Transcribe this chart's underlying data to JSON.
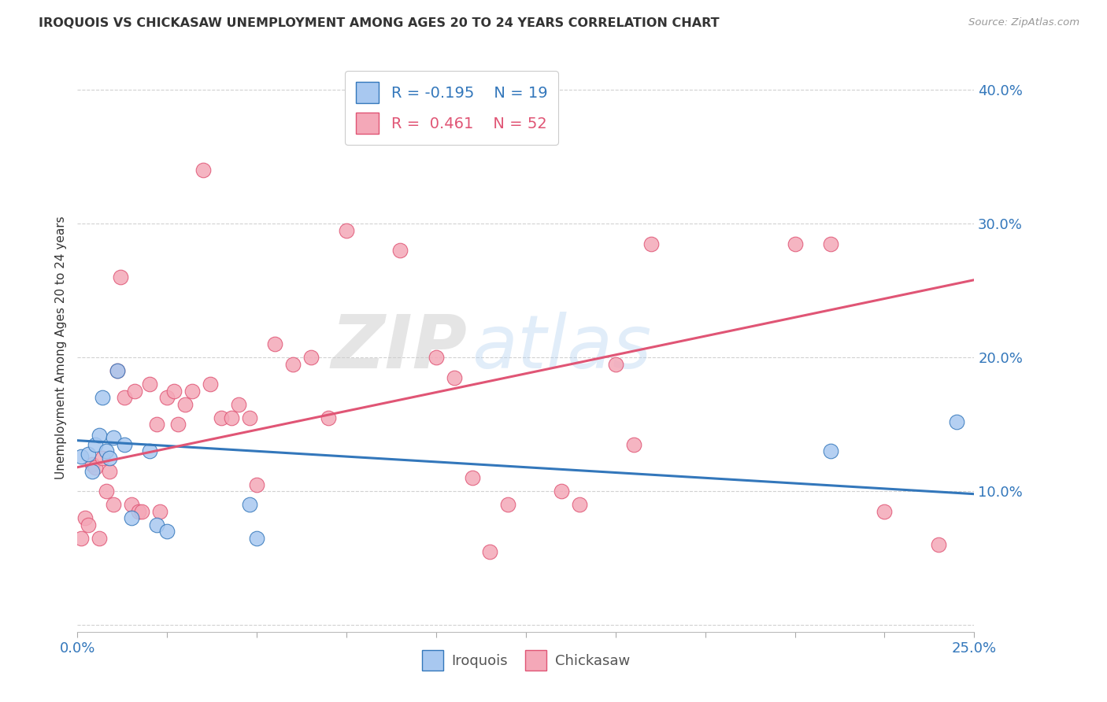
{
  "title": "IROQUOIS VS CHICKASAW UNEMPLOYMENT AMONG AGES 20 TO 24 YEARS CORRELATION CHART",
  "source": "Source: ZipAtlas.com",
  "ylabel": "Unemployment Among Ages 20 to 24 years",
  "xlim": [
    0.0,
    0.25
  ],
  "ylim": [
    -0.005,
    0.42
  ],
  "yticks": [
    0.0,
    0.1,
    0.2,
    0.3,
    0.4
  ],
  "legend_iroquois_R": "-0.195",
  "legend_iroquois_N": "19",
  "legend_chickasaw_R": "0.461",
  "legend_chickasaw_N": "52",
  "iroquois_color": "#a8c8f0",
  "chickasaw_color": "#f4a8b8",
  "iroquois_line_color": "#3377bb",
  "chickasaw_line_color": "#e05575",
  "watermark_zip": "ZIP",
  "watermark_atlas": "atlas",
  "iroquois_x": [
    0.001,
    0.003,
    0.004,
    0.005,
    0.006,
    0.007,
    0.008,
    0.009,
    0.01,
    0.011,
    0.013,
    0.015,
    0.02,
    0.022,
    0.025,
    0.048,
    0.05,
    0.21,
    0.245
  ],
  "iroquois_y": [
    0.126,
    0.128,
    0.115,
    0.135,
    0.142,
    0.17,
    0.13,
    0.125,
    0.14,
    0.19,
    0.135,
    0.08,
    0.13,
    0.075,
    0.07,
    0.09,
    0.065,
    0.13,
    0.152
  ],
  "chickasaw_x": [
    0.001,
    0.002,
    0.003,
    0.004,
    0.005,
    0.006,
    0.007,
    0.008,
    0.009,
    0.01,
    0.011,
    0.012,
    0.013,
    0.015,
    0.016,
    0.017,
    0.018,
    0.02,
    0.022,
    0.023,
    0.025,
    0.027,
    0.028,
    0.03,
    0.032,
    0.035,
    0.037,
    0.04,
    0.043,
    0.045,
    0.048,
    0.05,
    0.055,
    0.06,
    0.065,
    0.07,
    0.075,
    0.09,
    0.1,
    0.105,
    0.11,
    0.115,
    0.12,
    0.135,
    0.14,
    0.15,
    0.155,
    0.16,
    0.2,
    0.21,
    0.225,
    0.24
  ],
  "chickasaw_y": [
    0.065,
    0.08,
    0.075,
    0.12,
    0.118,
    0.065,
    0.125,
    0.1,
    0.115,
    0.09,
    0.19,
    0.26,
    0.17,
    0.09,
    0.175,
    0.085,
    0.085,
    0.18,
    0.15,
    0.085,
    0.17,
    0.175,
    0.15,
    0.165,
    0.175,
    0.34,
    0.18,
    0.155,
    0.155,
    0.165,
    0.155,
    0.105,
    0.21,
    0.195,
    0.2,
    0.155,
    0.295,
    0.28,
    0.2,
    0.185,
    0.11,
    0.055,
    0.09,
    0.1,
    0.09,
    0.195,
    0.135,
    0.285,
    0.285,
    0.285,
    0.085,
    0.06
  ],
  "iroquois_line_x": [
    0.0,
    0.25
  ],
  "iroquois_line_y": [
    0.138,
    0.098
  ],
  "chickasaw_line_x": [
    0.0,
    0.25
  ],
  "chickasaw_line_y": [
    0.118,
    0.258
  ]
}
